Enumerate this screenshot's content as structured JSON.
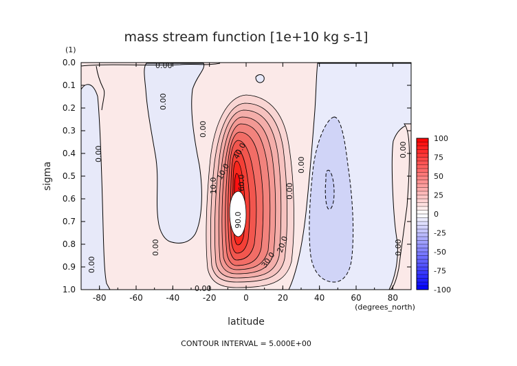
{
  "chart_data": {
    "type": "heatmap",
    "title": "mass stream function [1e+10 kg s-1]",
    "xlabel": "latitude",
    "ylabel": "sigma",
    "x_unit_label": "(degrees_north)",
    "y_unit_label": "(1)",
    "xlim": [
      -90,
      90
    ],
    "ylim": [
      0.0,
      1.0
    ],
    "y_inverted": true,
    "x_ticks": [
      -80,
      -60,
      -40,
      -20,
      0,
      20,
      40,
      60,
      80
    ],
    "x_tick_labels": [
      "-80",
      "-60",
      "-40",
      "-20",
      "0",
      "20",
      "40",
      "60",
      "80"
    ],
    "y_ticks": [
      0.0,
      0.1,
      0.2,
      0.3,
      0.4,
      0.5,
      0.6,
      0.7,
      0.8,
      0.9,
      1.0
    ],
    "y_tick_labels": [
      "0.0",
      "0.1",
      "0.2",
      "0.3",
      "0.4",
      "0.5",
      "0.6",
      "0.7",
      "0.8",
      "0.9",
      "1.0"
    ],
    "contour_interval_text": "CONTOUR INTERVAL = 5.000E+00",
    "colorbar": {
      "min": -100,
      "max": 100,
      "ticks": [
        100,
        75,
        50,
        25,
        0,
        -25,
        -50,
        -75,
        -100
      ],
      "tick_labels": [
        "100",
        "75",
        "50",
        "25",
        "0",
        "-25",
        "-50",
        "-75",
        "-100"
      ],
      "positive_color": "#ff0000",
      "negative_color": "#0000ff",
      "zero_color": "#ffffff"
    },
    "features": [
      {
        "name": "northern-hadley-cell",
        "sign": "positive",
        "center_lat": -4,
        "center_sigma": 0.67,
        "peak_value": 100,
        "lat_range": [
          -25,
          18
        ],
        "sigma_range": [
          0.16,
          0.99
        ]
      },
      {
        "name": "southern-ferrel-cell",
        "sign": "negative",
        "center_lat": 47,
        "center_sigma": 0.55,
        "peak_value": -5,
        "lat_range": [
          35,
          60
        ],
        "sigma_range": [
          0.24,
          0.97
        ]
      }
    ],
    "contour_labels": [
      "0.00",
      "0.00",
      "0.00",
      "0.00",
      "0.00",
      "0.00",
      "0.00",
      "0.00",
      "0.00",
      "0.00",
      "0.00",
      "0.00",
      "10.0",
      "10.0",
      "10.0",
      "20.0",
      "30.0",
      "40.0",
      "50.0",
      "60.0",
      "80.0",
      "90.0",
      "20.0",
      "10.0"
    ]
  }
}
